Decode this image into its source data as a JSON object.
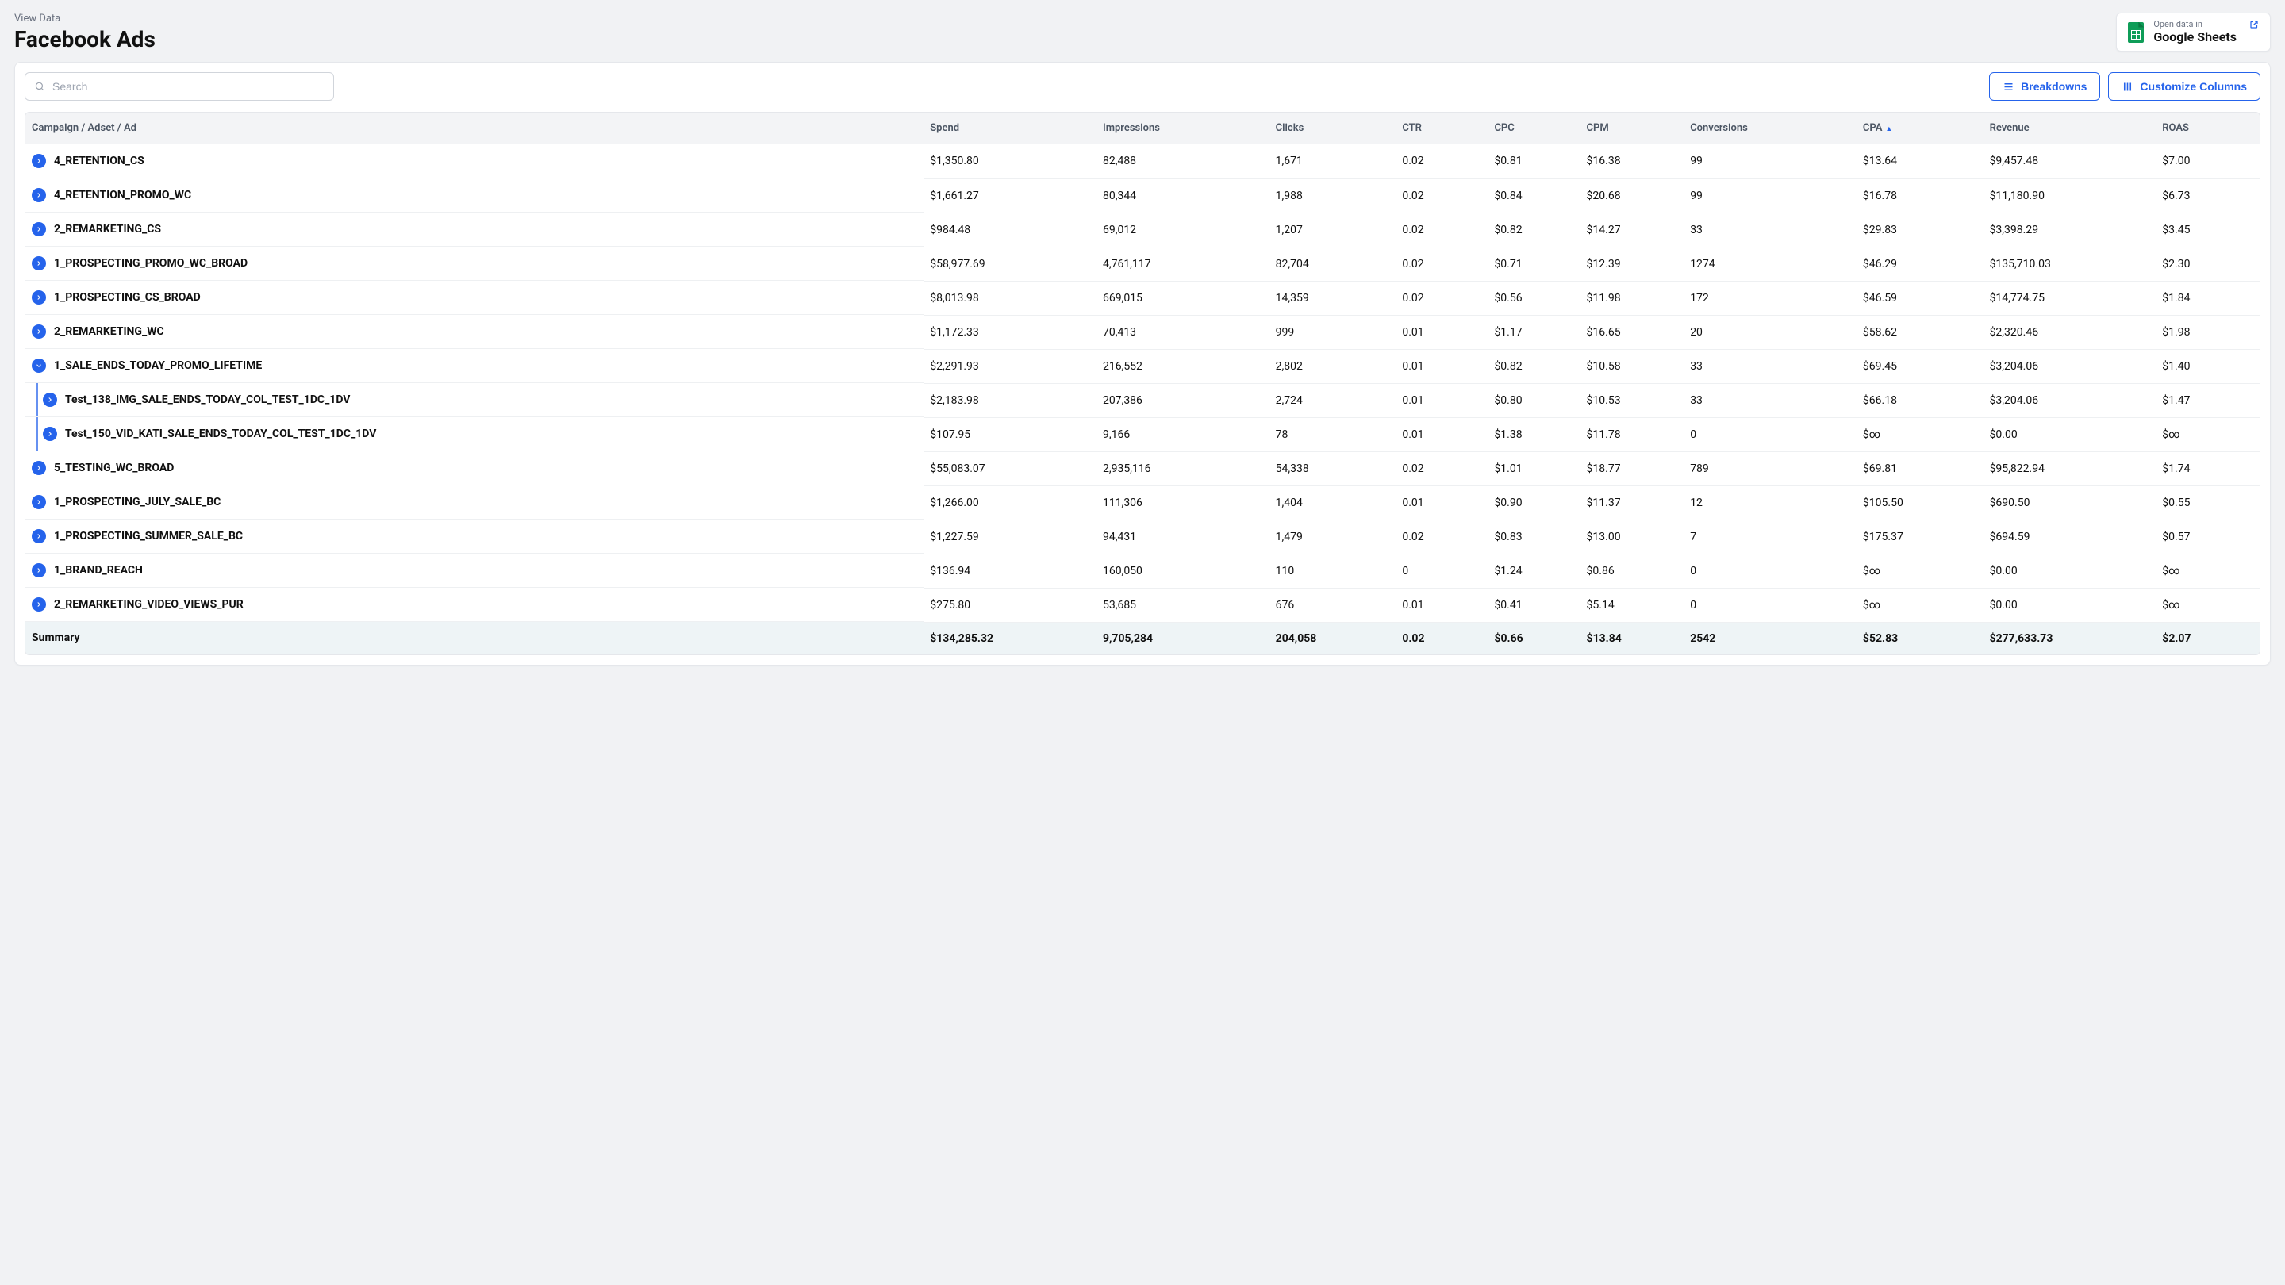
{
  "header": {
    "breadcrumb": "View Data",
    "title": "Facebook Ads",
    "openSheets": {
      "top": "Open data in",
      "main": "Google Sheets"
    }
  },
  "toolbar": {
    "searchPlaceholder": "Search",
    "breakdowns": "Breakdowns",
    "customize": "Customize Columns"
  },
  "columns": {
    "name": "Campaign / Adset / Ad",
    "spend": "Spend",
    "impressions": "Impressions",
    "clicks": "Clicks",
    "ctr": "CTR",
    "cpc": "CPC",
    "cpm": "CPM",
    "conversions": "Conversions",
    "cpa": "CPA",
    "revenue": "Revenue",
    "roas": "ROAS"
  },
  "sortedBy": "cpa",
  "rows": [
    {
      "name": "4_RETENTION_CS",
      "spend": "$1,350.80",
      "impr": "82,488",
      "clicks": "1,671",
      "ctr": "0.02",
      "cpc": "$0.81",
      "cpm": "$16.38",
      "conv": "99",
      "cpa": "$13.64",
      "rev": "$9,457.48",
      "roas": "$7.00"
    },
    {
      "name": "4_RETENTION_PROMO_WC",
      "spend": "$1,661.27",
      "impr": "80,344",
      "clicks": "1,988",
      "ctr": "0.02",
      "cpc": "$0.84",
      "cpm": "$20.68",
      "conv": "99",
      "cpa": "$16.78",
      "rev": "$11,180.90",
      "roas": "$6.73"
    },
    {
      "name": "2_REMARKETING_CS",
      "spend": "$984.48",
      "impr": "69,012",
      "clicks": "1,207",
      "ctr": "0.02",
      "cpc": "$0.82",
      "cpm": "$14.27",
      "conv": "33",
      "cpa": "$29.83",
      "rev": "$3,398.29",
      "roas": "$3.45"
    },
    {
      "name": "1_PROSPECTING_PROMO_WC_BROAD",
      "spend": "$58,977.69",
      "impr": "4,761,117",
      "clicks": "82,704",
      "ctr": "0.02",
      "cpc": "$0.71",
      "cpm": "$12.39",
      "conv": "1274",
      "cpa": "$46.29",
      "rev": "$135,710.03",
      "roas": "$2.30"
    },
    {
      "name": "1_PROSPECTING_CS_BROAD",
      "spend": "$8,013.98",
      "impr": "669,015",
      "clicks": "14,359",
      "ctr": "0.02",
      "cpc": "$0.56",
      "cpm": "$11.98",
      "conv": "172",
      "cpa": "$46.59",
      "rev": "$14,774.75",
      "roas": "$1.84"
    },
    {
      "name": "2_REMARKETING_WC",
      "spend": "$1,172.33",
      "impr": "70,413",
      "clicks": "999",
      "ctr": "0.01",
      "cpc": "$1.17",
      "cpm": "$16.65",
      "conv": "20",
      "cpa": "$58.62",
      "rev": "$2,320.46",
      "roas": "$1.98"
    },
    {
      "name": "1_SALE_ENDS_TODAY_PROMO_LIFETIME",
      "expanded": true,
      "spend": "$2,291.93",
      "impr": "216,552",
      "clicks": "2,802",
      "ctr": "0.01",
      "cpc": "$0.82",
      "cpm": "$10.58",
      "conv": "33",
      "cpa": "$69.45",
      "rev": "$3,204.06",
      "roas": "$1.40"
    },
    {
      "name": "Test_138_IMG_SALE_ENDS_TODAY_COL_TEST_1DC_1DV",
      "child": true,
      "spend": "$2,183.98",
      "impr": "207,386",
      "clicks": "2,724",
      "ctr": "0.01",
      "cpc": "$0.80",
      "cpm": "$10.53",
      "conv": "33",
      "cpa": "$66.18",
      "rev": "$3,204.06",
      "roas": "$1.47"
    },
    {
      "name": "Test_150_VID_KATI_SALE_ENDS_TODAY_COL_TEST_1DC_1DV",
      "child": true,
      "spend": "$107.95",
      "impr": "9,166",
      "clicks": "78",
      "ctr": "0.01",
      "cpc": "$1.38",
      "cpm": "$11.78",
      "conv": "0",
      "cpa": "$∞",
      "rev": "$0.00",
      "roas": "$∞"
    },
    {
      "name": "5_TESTING_WC_BROAD",
      "spend": "$55,083.07",
      "impr": "2,935,116",
      "clicks": "54,338",
      "ctr": "0.02",
      "cpc": "$1.01",
      "cpm": "$18.77",
      "conv": "789",
      "cpa": "$69.81",
      "rev": "$95,822.94",
      "roas": "$1.74"
    },
    {
      "name": "1_PROSPECTING_JULY_SALE_BC",
      "spend": "$1,266.00",
      "impr": "111,306",
      "clicks": "1,404",
      "ctr": "0.01",
      "cpc": "$0.90",
      "cpm": "$11.37",
      "conv": "12",
      "cpa": "$105.50",
      "rev": "$690.50",
      "roas": "$0.55"
    },
    {
      "name": "1_PROSPECTING_SUMMER_SALE_BC",
      "spend": "$1,227.59",
      "impr": "94,431",
      "clicks": "1,479",
      "ctr": "0.02",
      "cpc": "$0.83",
      "cpm": "$13.00",
      "conv": "7",
      "cpa": "$175.37",
      "rev": "$694.59",
      "roas": "$0.57"
    },
    {
      "name": "1_BRAND_REACH",
      "spend": "$136.94",
      "impr": "160,050",
      "clicks": "110",
      "ctr": "0",
      "cpc": "$1.24",
      "cpm": "$0.86",
      "conv": "0",
      "cpa": "$∞",
      "rev": "$0.00",
      "roas": "$∞"
    },
    {
      "name": "2_REMARKETING_VIDEO_VIEWS_PUR",
      "spend": "$275.80",
      "impr": "53,685",
      "clicks": "676",
      "ctr": "0.01",
      "cpc": "$0.41",
      "cpm": "$5.14",
      "conv": "0",
      "cpa": "$∞",
      "rev": "$0.00",
      "roas": "$∞"
    }
  ],
  "summary": {
    "label": "Summary",
    "spend": "$134,285.32",
    "impr": "9,705,284",
    "clicks": "204,058",
    "ctr": "0.02",
    "cpc": "$0.66",
    "cpm": "$13.84",
    "conv": "2542",
    "cpa": "$52.83",
    "rev": "$277,633.73",
    "roas": "$2.07"
  }
}
